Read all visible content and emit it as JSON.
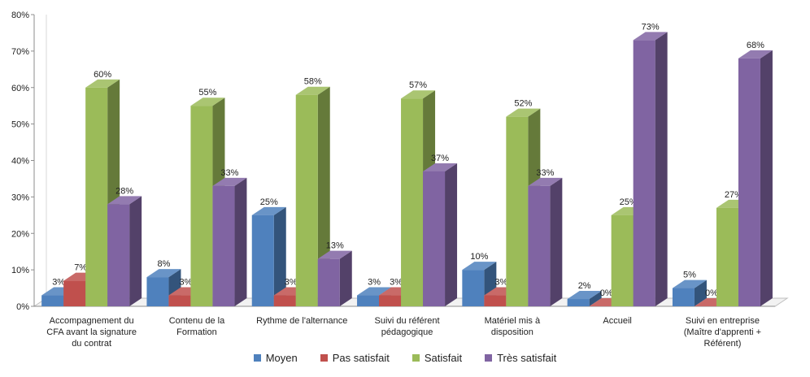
{
  "chart_data": {
    "type": "bar",
    "title": "",
    "xlabel": "",
    "ylabel": "",
    "ylim": [
      0,
      80
    ],
    "yticks": [
      "0%",
      "10%",
      "20%",
      "30%",
      "40%",
      "50%",
      "60%",
      "70%",
      "80%"
    ],
    "grid": false,
    "legend_position": "bottom",
    "categories": [
      [
        "Accompagnement du",
        "CFA avant la signature",
        "du contrat"
      ],
      [
        "Contenu de la",
        "Formation"
      ],
      [
        "Rythme de l'alternance"
      ],
      [
        "Suivi du référent",
        "pédagogique"
      ],
      [
        "Matériel mis à",
        "disposition"
      ],
      [
        "Accueil"
      ],
      [
        "Suivi en entreprise",
        "(Maître d'apprenti +",
        "Référent)"
      ]
    ],
    "series": [
      {
        "name": "Moyen",
        "color": "#4F81BD",
        "values": [
          3,
          8,
          25,
          3,
          10,
          2,
          5
        ],
        "labels": [
          "3%",
          "8%",
          "25%",
          "3%",
          "10%",
          "2%",
          "5%"
        ]
      },
      {
        "name": "Pas satisfait",
        "color": "#C0504D",
        "values": [
          7,
          3,
          3,
          3,
          3,
          0,
          0
        ],
        "labels": [
          "7%",
          "3%",
          "3%",
          "3%",
          "3%",
          "0%",
          "0%"
        ]
      },
      {
        "name": "Satisfait",
        "color": "#9BBB59",
        "values": [
          60,
          55,
          58,
          57,
          52,
          25,
          27
        ],
        "labels": [
          "60%",
          "55%",
          "58%",
          "57%",
          "52%",
          "25%",
          "27%"
        ]
      },
      {
        "name": "Très satisfait",
        "color": "#8064A2",
        "values": [
          28,
          33,
          13,
          37,
          33,
          73,
          68
        ],
        "labels": [
          "28%",
          "33%",
          "13%",
          "37%",
          "33%",
          "73%",
          "68%"
        ]
      }
    ]
  }
}
